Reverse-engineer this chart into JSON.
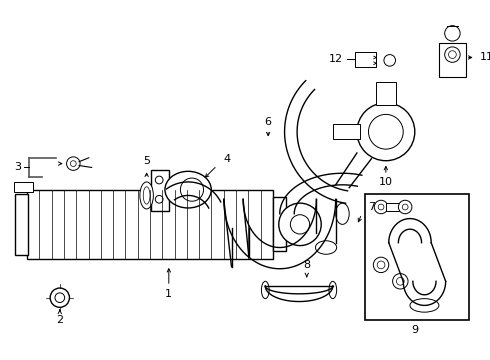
{
  "bg_color": "#ffffff",
  "line_color": "#000000",
  "figsize": [
    4.9,
    3.6
  ],
  "dpi": 100
}
